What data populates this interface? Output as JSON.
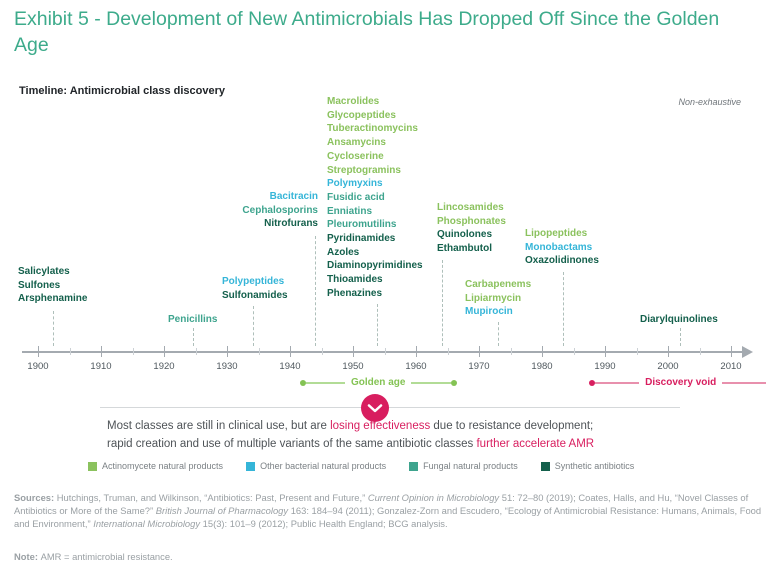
{
  "page": {
    "title": "Exhibit 5 - Development of New Antimicrobials Has Dropped Off Since the Golden Age"
  },
  "chart_data": {
    "type": "timeline",
    "title": "Timeline: Antimicrobial class discovery",
    "annotation": "Non-exhaustive",
    "axis": {
      "start_year": 1900,
      "end_year": 2010,
      "tick_interval": 10,
      "decades": [
        "1900",
        "1910",
        "1920",
        "1930",
        "1940",
        "1950",
        "1960",
        "1970",
        "1980",
        "1990",
        "2000",
        "2010"
      ]
    },
    "category_colors": {
      "actinomycete": "#8bc25e",
      "other_bacterial": "#35b5d8",
      "fungal": "#3ea48e",
      "synthetic": "#14604c"
    },
    "groups": [
      {
        "year": 1902,
        "items": [
          {
            "label": "Salicylates",
            "category": "synthetic"
          },
          {
            "label": "Sulfones",
            "category": "synthetic"
          },
          {
            "label": "Arsphenamine",
            "category": "synthetic"
          }
        ]
      },
      {
        "year": 1928,
        "items": [
          {
            "label": "Penicillins",
            "category": "fungal"
          }
        ]
      },
      {
        "year": 1934,
        "items": [
          {
            "label": "Polypeptides",
            "category": "other_bacterial"
          },
          {
            "label": "Sulfonamides",
            "category": "synthetic"
          }
        ]
      },
      {
        "year": 1944,
        "items": [
          {
            "label": "Bacitracin",
            "category": "other_bacterial"
          },
          {
            "label": "Cephalosporins",
            "category": "fungal"
          },
          {
            "label": "Nitrofurans",
            "category": "synthetic"
          }
        ]
      },
      {
        "year": 1954,
        "items": [
          {
            "label": "Macrolides",
            "category": "actinomycete"
          },
          {
            "label": "Glycopeptides",
            "category": "actinomycete"
          },
          {
            "label": "Tuberactinomycins",
            "category": "actinomycete"
          },
          {
            "label": "Ansamycins",
            "category": "actinomycete"
          },
          {
            "label": "Cycloserine",
            "category": "actinomycete"
          },
          {
            "label": "Streptogramins",
            "category": "actinomycete"
          },
          {
            "label": "Polymyxins",
            "category": "other_bacterial"
          },
          {
            "label": "Fusidic acid",
            "category": "fungal"
          },
          {
            "label": "Enniatins",
            "category": "fungal"
          },
          {
            "label": "Pleuromutilins",
            "category": "fungal"
          },
          {
            "label": "Pyridinamides",
            "category": "synthetic"
          },
          {
            "label": "Azoles",
            "category": "synthetic"
          },
          {
            "label": "Diaminopyrimidines",
            "category": "synthetic"
          },
          {
            "label": "Thioamides",
            "category": "synthetic"
          },
          {
            "label": "Phenazines",
            "category": "synthetic"
          }
        ]
      },
      {
        "year": 1964,
        "items": [
          {
            "label": "Lincosamides",
            "category": "actinomycete"
          },
          {
            "label": "Phosphonates",
            "category": "actinomycete"
          },
          {
            "label": "Quinolones",
            "category": "synthetic"
          },
          {
            "label": "Ethambutol",
            "category": "synthetic"
          }
        ]
      },
      {
        "year": 1973,
        "items": [
          {
            "label": "Carbapenems",
            "category": "actinomycete"
          },
          {
            "label": "Lipiarmycin",
            "category": "actinomycete"
          },
          {
            "label": "Mupirocin",
            "category": "other_bacterial"
          }
        ]
      },
      {
        "year": 1983,
        "items": [
          {
            "label": "Lipopeptides",
            "category": "actinomycete"
          },
          {
            "label": "Monobactams",
            "category": "other_bacterial"
          },
          {
            "label": "Oxazolidinones",
            "category": "synthetic"
          }
        ]
      },
      {
        "year": 2002,
        "items": [
          {
            "label": "Diarylquinolines",
            "category": "synthetic"
          }
        ]
      }
    ],
    "periods": [
      {
        "label": "Golden age",
        "start_year": 1942,
        "end_year": 1966,
        "color": "#84c354",
        "line_color": "#b2dc96",
        "open_ended": false
      },
      {
        "label": "Discovery void",
        "start_year": 1988,
        "end_year": 2016,
        "color": "#d81e5f",
        "line_color": "#e890ad",
        "open_ended": true
      }
    ],
    "callout": {
      "icon": "chevron-down",
      "accent_color": "#d81e5f",
      "lines": [
        [
          {
            "t": "Most classes are still in clinical use, but are "
          },
          {
            "t": "losing effectiveness",
            "accent": true
          },
          {
            "t": " due to resistance development;"
          }
        ],
        [
          {
            "t": "rapid creation and use of multiple variants of the same antibiotic classes "
          },
          {
            "t": "further accelerate AMR",
            "accent": true
          }
        ]
      ]
    },
    "legend": [
      {
        "label": "Actinomycete natural products",
        "category": "actinomycete"
      },
      {
        "label": "Other bacterial natural products",
        "category": "other_bacterial"
      },
      {
        "label": "Fungal natural products",
        "category": "fungal"
      },
      {
        "label": "Synthetic antibiotics",
        "category": "synthetic"
      }
    ]
  },
  "sources": {
    "segments": [
      {
        "t": "Sources: ",
        "bold": true
      },
      {
        "t": "Hutchings, Truman, and Wilkinson, “Antibiotics: Past, Present and Future,” "
      },
      {
        "t": "Current Opinion in Microbiology",
        "italic": true
      },
      {
        "t": " 51: 72–80 (2019); Coates, Halls, and Hu, “Novel Classes of Antibiotics or More of the Same?” "
      },
      {
        "t": "British Journal of Pharmacology",
        "italic": true
      },
      {
        "t": " 163: 184–94 (2011); Gonzalez-Zorn and Escudero, “Ecology of Antimicrobial Resistance: Humans, Animals, Food and Environment,” "
      },
      {
        "t": "International Microbiology",
        "italic": true
      },
      {
        "t": " 15(3): 101–9 (2012); Public Health England; BCG analysis."
      }
    ]
  },
  "note": {
    "segments": [
      {
        "t": "Note: ",
        "bold": true
      },
      {
        "t": "AMR = antimicrobial resistance."
      }
    ]
  }
}
